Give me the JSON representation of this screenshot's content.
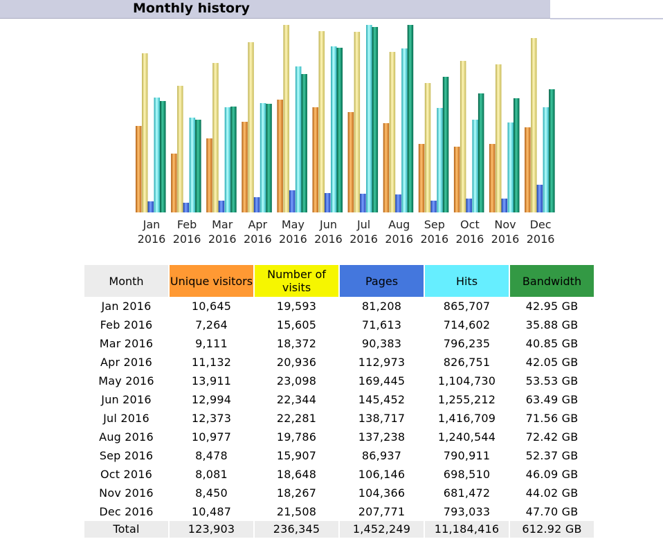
{
  "section_title": "Monthly history",
  "table": {
    "headers": {
      "month": "Month",
      "unique_visitors": "Unique visitors",
      "visits": "Number of visits",
      "pages": "Pages",
      "hits": "Hits",
      "bandwidth": "Bandwidth"
    },
    "header_colors": {
      "month": "#ececec",
      "unique_visitors": "#ff9933",
      "visits": "#f6f600",
      "pages": "#4477dd",
      "hits": "#66eeff",
      "bandwidth": "#339944"
    },
    "rows": [
      {
        "month": "Jan 2016",
        "unique": "10,645",
        "visits": "19,593",
        "pages": "81,208",
        "hits": "865,707",
        "bandwidth": "42.95 GB"
      },
      {
        "month": "Feb 2016",
        "unique": "7,264",
        "visits": "15,605",
        "pages": "71,613",
        "hits": "714,602",
        "bandwidth": "35.88 GB"
      },
      {
        "month": "Mar 2016",
        "unique": "9,111",
        "visits": "18,372",
        "pages": "90,383",
        "hits": "796,235",
        "bandwidth": "40.85 GB"
      },
      {
        "month": "Apr 2016",
        "unique": "11,132",
        "visits": "20,936",
        "pages": "112,973",
        "hits": "826,751",
        "bandwidth": "42.05 GB"
      },
      {
        "month": "May 2016",
        "unique": "13,911",
        "visits": "23,098",
        "pages": "169,445",
        "hits": "1,104,730",
        "bandwidth": "53.53 GB"
      },
      {
        "month": "Jun 2016",
        "unique": "12,994",
        "visits": "22,344",
        "pages": "145,452",
        "hits": "1,255,212",
        "bandwidth": "63.49 GB"
      },
      {
        "month": "Jul 2016",
        "unique": "12,373",
        "visits": "22,281",
        "pages": "138,717",
        "hits": "1,416,709",
        "bandwidth": "71.56 GB"
      },
      {
        "month": "Aug 2016",
        "unique": "10,977",
        "visits": "19,786",
        "pages": "137,238",
        "hits": "1,240,544",
        "bandwidth": "72.42 GB"
      },
      {
        "month": "Sep 2016",
        "unique": "8,478",
        "visits": "15,907",
        "pages": "86,937",
        "hits": "790,911",
        "bandwidth": "52.37 GB"
      },
      {
        "month": "Oct 2016",
        "unique": "8,081",
        "visits": "18,648",
        "pages": "106,146",
        "hits": "698,510",
        "bandwidth": "46.09 GB"
      },
      {
        "month": "Nov 2016",
        "unique": "8,450",
        "visits": "18,267",
        "pages": "104,366",
        "hits": "681,472",
        "bandwidth": "44.02 GB"
      },
      {
        "month": "Dec 2016",
        "unique": "10,487",
        "visits": "21,508",
        "pages": "207,771",
        "hits": "793,033",
        "bandwidth": "47.70 GB"
      }
    ],
    "total": {
      "month": "Total",
      "unique": "123,903",
      "visits": "236,345",
      "pages": "1,452,249",
      "hits": "11,184,416",
      "bandwidth": "612.92 GB"
    }
  },
  "chart_data": {
    "type": "bar",
    "categories": [
      {
        "month": "Jan",
        "year": "2016"
      },
      {
        "month": "Feb",
        "year": "2016"
      },
      {
        "month": "Mar",
        "year": "2016"
      },
      {
        "month": "Apr",
        "year": "2016"
      },
      {
        "month": "May",
        "year": "2016"
      },
      {
        "month": "Jun",
        "year": "2016"
      },
      {
        "month": "Jul",
        "year": "2016"
      },
      {
        "month": "Aug",
        "year": "2016"
      },
      {
        "month": "Sep",
        "year": "2016"
      },
      {
        "month": "Oct",
        "year": "2016"
      },
      {
        "month": "Nov",
        "year": "2016"
      },
      {
        "month": "Dec",
        "year": "2016"
      }
    ],
    "series": [
      {
        "key": "unique",
        "color": "#e8902a",
        "values": [
          10645,
          7264,
          9111,
          11132,
          13911,
          12994,
          12373,
          10977,
          8478,
          8081,
          8450,
          10487
        ]
      },
      {
        "key": "visits",
        "color": "#e6df80",
        "values": [
          19593,
          15605,
          18372,
          20936,
          23098,
          22344,
          22281,
          19786,
          15907,
          18648,
          18267,
          21508
        ]
      },
      {
        "key": "pages",
        "color": "#3a63d8",
        "values": [
          81208,
          71613,
          90383,
          112973,
          169445,
          145452,
          138717,
          137238,
          86937,
          106146,
          104366,
          207771
        ]
      },
      {
        "key": "hits",
        "color": "#4fe0e0",
        "values": [
          865707,
          714602,
          796235,
          826751,
          1104730,
          1255212,
          1416709,
          1240544,
          790911,
          698510,
          681472,
          793033
        ]
      },
      {
        "key": "bandwidth",
        "color": "#119070",
        "values": [
          42.95,
          35.88,
          40.85,
          42.05,
          53.53,
          63.49,
          71.56,
          72.42,
          52.37,
          46.09,
          44.02,
          47.7
        ]
      }
    ],
    "scale_groups": [
      [
        "unique",
        "visits"
      ],
      [
        "pages",
        "hits"
      ],
      [
        "bandwidth"
      ]
    ],
    "grid": false,
    "legend": "none"
  }
}
